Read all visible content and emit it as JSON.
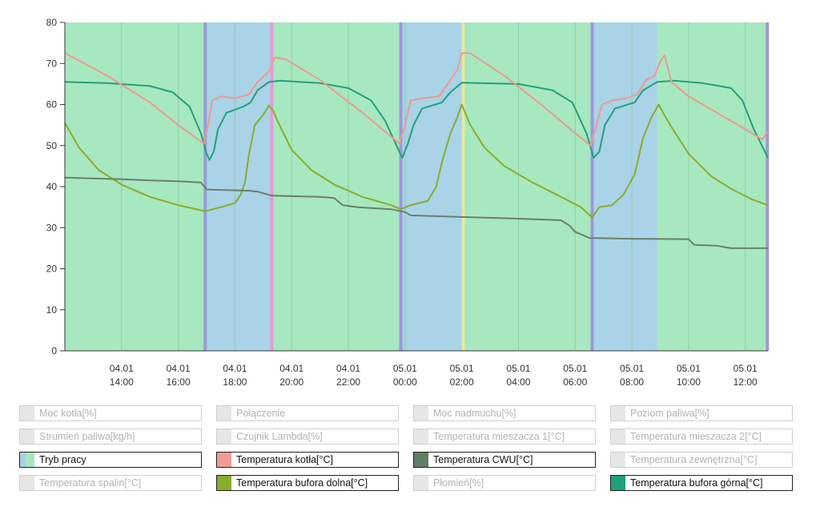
{
  "chart_data": {
    "type": "line",
    "y_axis": {
      "range": [
        0,
        80
      ],
      "ticks": [
        0,
        10,
        20,
        30,
        40,
        50,
        60,
        70,
        80
      ]
    },
    "x_axis": {
      "range_hours": [
        12.0,
        36.8
      ],
      "ticks": [
        {
          "h": 14,
          "date": "04.01",
          "time": "14:00"
        },
        {
          "h": 16,
          "date": "04.01",
          "time": "16:00"
        },
        {
          "h": 18,
          "date": "04.01",
          "time": "18:00"
        },
        {
          "h": 20,
          "date": "04.01",
          "time": "20:00"
        },
        {
          "h": 22,
          "date": "04.01",
          "time": "22:00"
        },
        {
          "h": 24,
          "date": "05.01",
          "time": "00:00"
        },
        {
          "h": 26,
          "date": "05.01",
          "time": "02:00"
        },
        {
          "h": 28,
          "date": "05.01",
          "time": "04:00"
        },
        {
          "h": 30,
          "date": "05.01",
          "time": "06:00"
        },
        {
          "h": 32,
          "date": "05.01",
          "time": "08:00"
        },
        {
          "h": 34,
          "date": "05.01",
          "time": "10:00"
        },
        {
          "h": 36,
          "date": "05.01",
          "time": "12:00"
        }
      ]
    },
    "mode_bands": [
      {
        "start": 12.0,
        "end": 16.95,
        "mode": "green"
      },
      {
        "start": 16.95,
        "end": 19.3,
        "mode": "blue"
      },
      {
        "start": 19.3,
        "end": 23.85,
        "mode": "green"
      },
      {
        "start": 23.85,
        "end": 26.05,
        "mode": "blue"
      },
      {
        "start": 26.05,
        "end": 30.6,
        "mode": "green"
      },
      {
        "start": 30.6,
        "end": 32.9,
        "mode": "blue"
      },
      {
        "start": 32.9,
        "end": 36.8,
        "mode": "green"
      }
    ],
    "mode_markers": [
      {
        "h": 16.95,
        "color": "#9a9ad8"
      },
      {
        "h": 19.3,
        "color": "#e89ad8"
      },
      {
        "h": 23.85,
        "color": "#9a9ad8"
      },
      {
        "h": 26.05,
        "color": "#e8e89a"
      },
      {
        "h": 30.6,
        "color": "#9a9ad8"
      },
      {
        "h": 36.78,
        "color": "#9a9ad8"
      }
    ],
    "series": [
      {
        "name": "Temperatura bufora górna[°C]",
        "color": "#22a07a",
        "points": [
          [
            12.0,
            65.5
          ],
          [
            13.5,
            65.2
          ],
          [
            15.0,
            64.5
          ],
          [
            15.8,
            63.0
          ],
          [
            16.4,
            59.5
          ],
          [
            16.8,
            53.0
          ],
          [
            17.0,
            48.0
          ],
          [
            17.1,
            46.5
          ],
          [
            17.25,
            48.5
          ],
          [
            17.4,
            54.0
          ],
          [
            17.7,
            58.0
          ],
          [
            18.3,
            59.5
          ],
          [
            18.55,
            60.5
          ],
          [
            18.8,
            63.5
          ],
          [
            19.2,
            65.5
          ],
          [
            19.6,
            65.8
          ],
          [
            21.0,
            65.2
          ],
          [
            22.0,
            64.0
          ],
          [
            22.8,
            61.0
          ],
          [
            23.3,
            56.0
          ],
          [
            23.7,
            50.0
          ],
          [
            23.9,
            47.0
          ],
          [
            24.1,
            50.5
          ],
          [
            24.3,
            55.0
          ],
          [
            24.6,
            59.0
          ],
          [
            25.3,
            60.5
          ],
          [
            25.6,
            63.0
          ],
          [
            26.0,
            65.3
          ],
          [
            28.0,
            65.0
          ],
          [
            29.2,
            63.5
          ],
          [
            29.9,
            60.5
          ],
          [
            30.4,
            53.0
          ],
          [
            30.65,
            47.0
          ],
          [
            30.85,
            48.5
          ],
          [
            31.05,
            55.0
          ],
          [
            31.4,
            59.0
          ],
          [
            32.1,
            60.5
          ],
          [
            32.4,
            63.5
          ],
          [
            32.9,
            65.5
          ],
          [
            33.5,
            65.8
          ],
          [
            34.5,
            65.2
          ],
          [
            35.5,
            64.0
          ],
          [
            35.9,
            61.0
          ],
          [
            36.3,
            54.0
          ],
          [
            36.8,
            47.0
          ]
        ]
      },
      {
        "name": "Temperatura kotła[°C]",
        "color": "#ec9990",
        "points": [
          [
            12.0,
            72.5
          ],
          [
            13.5,
            67.0
          ],
          [
            15.0,
            60.5
          ],
          [
            16.0,
            55.0
          ],
          [
            16.9,
            50.5
          ],
          [
            17.05,
            55.0
          ],
          [
            17.2,
            61.0
          ],
          [
            17.5,
            62.0
          ],
          [
            18.0,
            61.5
          ],
          [
            18.5,
            62.5
          ],
          [
            18.8,
            65.5
          ],
          [
            19.2,
            68.0
          ],
          [
            19.4,
            71.5
          ],
          [
            19.8,
            71.0
          ],
          [
            21.0,
            66.0
          ],
          [
            22.5,
            58.0
          ],
          [
            23.8,
            50.5
          ],
          [
            24.0,
            55.0
          ],
          [
            24.2,
            61.0
          ],
          [
            24.6,
            61.5
          ],
          [
            25.2,
            62.0
          ],
          [
            25.6,
            66.0
          ],
          [
            25.85,
            68.5
          ],
          [
            26.0,
            72.5
          ],
          [
            26.3,
            72.5
          ],
          [
            27.5,
            67.0
          ],
          [
            28.8,
            60.0
          ],
          [
            30.0,
            53.0
          ],
          [
            30.55,
            50.0
          ],
          [
            30.75,
            55.0
          ],
          [
            30.95,
            60.0
          ],
          [
            31.3,
            61.0
          ],
          [
            31.8,
            61.5
          ],
          [
            32.2,
            62.5
          ],
          [
            32.5,
            66.0
          ],
          [
            32.8,
            67.0
          ],
          [
            33.0,
            70.5
          ],
          [
            33.15,
            72.0
          ],
          [
            33.4,
            65.5
          ],
          [
            34.0,
            62.0
          ],
          [
            35.0,
            58.0
          ],
          [
            36.0,
            54.0
          ],
          [
            36.6,
            51.5
          ],
          [
            36.8,
            53.5
          ]
        ]
      },
      {
        "name": "Temperatura bufora dolna[°C]",
        "color": "#8aac2c",
        "points": [
          [
            12.0,
            55.5
          ],
          [
            12.5,
            49.5
          ],
          [
            13.2,
            44.0
          ],
          [
            14.0,
            40.5
          ],
          [
            15.0,
            37.5
          ],
          [
            16.0,
            35.5
          ],
          [
            16.95,
            34.0
          ],
          [
            17.5,
            35.0
          ],
          [
            18.0,
            36.0
          ],
          [
            18.2,
            38.0
          ],
          [
            18.35,
            41.0
          ],
          [
            18.5,
            48.0
          ],
          [
            18.7,
            55.0
          ],
          [
            19.0,
            57.5
          ],
          [
            19.2,
            59.8
          ],
          [
            19.35,
            58.5
          ],
          [
            19.5,
            56.0
          ],
          [
            20.0,
            49.0
          ],
          [
            20.7,
            44.0
          ],
          [
            21.5,
            40.5
          ],
          [
            22.5,
            37.5
          ],
          [
            23.5,
            35.5
          ],
          [
            23.85,
            34.5
          ],
          [
            24.2,
            35.5
          ],
          [
            24.8,
            36.5
          ],
          [
            25.1,
            40.0
          ],
          [
            25.3,
            46.0
          ],
          [
            25.6,
            53.0
          ],
          [
            25.85,
            57.0
          ],
          [
            26.0,
            60.0
          ],
          [
            26.3,
            55.0
          ],
          [
            26.8,
            49.5
          ],
          [
            27.5,
            45.0
          ],
          [
            28.5,
            41.0
          ],
          [
            29.5,
            37.5
          ],
          [
            30.2,
            35.0
          ],
          [
            30.6,
            32.5
          ],
          [
            30.85,
            35.0
          ],
          [
            31.3,
            35.5
          ],
          [
            31.7,
            38.0
          ],
          [
            32.1,
            43.0
          ],
          [
            32.4,
            52.0
          ],
          [
            32.7,
            57.0
          ],
          [
            32.95,
            60.0
          ],
          [
            33.1,
            58.0
          ],
          [
            33.4,
            54.5
          ],
          [
            34.0,
            48.0
          ],
          [
            34.8,
            42.5
          ],
          [
            35.5,
            39.5
          ],
          [
            36.2,
            37.0
          ],
          [
            36.8,
            35.5
          ]
        ]
      },
      {
        "name": "Temperatura CWU[°C]",
        "color": "#6a7f6a",
        "points": [
          [
            12.0,
            42.2
          ],
          [
            14.0,
            41.8
          ],
          [
            15.0,
            41.5
          ],
          [
            16.0,
            41.3
          ],
          [
            16.8,
            41.0
          ],
          [
            17.0,
            39.3
          ],
          [
            18.5,
            39.0
          ],
          [
            18.8,
            38.8
          ],
          [
            19.3,
            37.8
          ],
          [
            21.0,
            37.5
          ],
          [
            21.5,
            37.2
          ],
          [
            21.8,
            35.5
          ],
          [
            22.3,
            35.0
          ],
          [
            23.5,
            34.5
          ],
          [
            24.0,
            33.8
          ],
          [
            24.2,
            33.0
          ],
          [
            26.0,
            32.6
          ],
          [
            28.0,
            32.2
          ],
          [
            29.5,
            31.8
          ],
          [
            29.8,
            30.5
          ],
          [
            30.0,
            29.0
          ],
          [
            30.5,
            27.5
          ],
          [
            32.0,
            27.3
          ],
          [
            34.0,
            27.2
          ],
          [
            34.2,
            25.8
          ],
          [
            35.0,
            25.6
          ],
          [
            35.5,
            25.0
          ],
          [
            36.8,
            25.0
          ]
        ]
      }
    ]
  },
  "legend": [
    {
      "label": "Moc kotła[%]",
      "active": false,
      "swatch": "#e6e6e6"
    },
    {
      "label": "Połączenie",
      "active": false,
      "swatch": "#e6e6e6"
    },
    {
      "label": "Moc nadmuchu[%]",
      "active": false,
      "swatch": "#e6e6e6"
    },
    {
      "label": "Poziom paliwa[%]",
      "active": false,
      "swatch": "#e6e6e6"
    },
    {
      "label": "Strumień paliwa[kg/h]",
      "active": false,
      "swatch": "#e6e6e6"
    },
    {
      "label": "Czujnik Lambda[%]",
      "active": false,
      "swatch": "#e6e6e6"
    },
    {
      "label": "Temperatura mieszacza 1[°C]",
      "active": false,
      "swatch": "#e6e6e6"
    },
    {
      "label": "Temperatura mieszacza 2[°C]",
      "active": false,
      "swatch": "#e6e6e6"
    },
    {
      "label": "Tryb pracy",
      "active": true,
      "swatch": "linear-gradient(90deg,#a9d2e6 0%,#a9d2e6 40%,#a8e6be 40%,#a8e6be 100%)"
    },
    {
      "label": "Temperatura kotła[°C]",
      "active": true,
      "swatch": "#f09c94"
    },
    {
      "label": "Temperatura CWU[°C]",
      "active": true,
      "swatch": "#647c64"
    },
    {
      "label": "Temperatura zewnętrzna[°C]",
      "active": false,
      "swatch": "#e6e6e6"
    },
    {
      "label": "Temperatura spalin[°C]",
      "active": false,
      "swatch": "#e6e6e6"
    },
    {
      "label": "Temperatura bufora dolna[°C]",
      "active": true,
      "swatch": "#8aac2c"
    },
    {
      "label": "Płomień[%]",
      "active": false,
      "swatch": "#e6e6e6"
    },
    {
      "label": "Temperatura bufora górna[°C]",
      "active": true,
      "swatch": "#1fa07c"
    }
  ],
  "colors": {
    "green_band": "#a8e8c0",
    "blue_band": "#a9d3e7",
    "grid": "#8fcfa8",
    "axis": "#333333"
  }
}
